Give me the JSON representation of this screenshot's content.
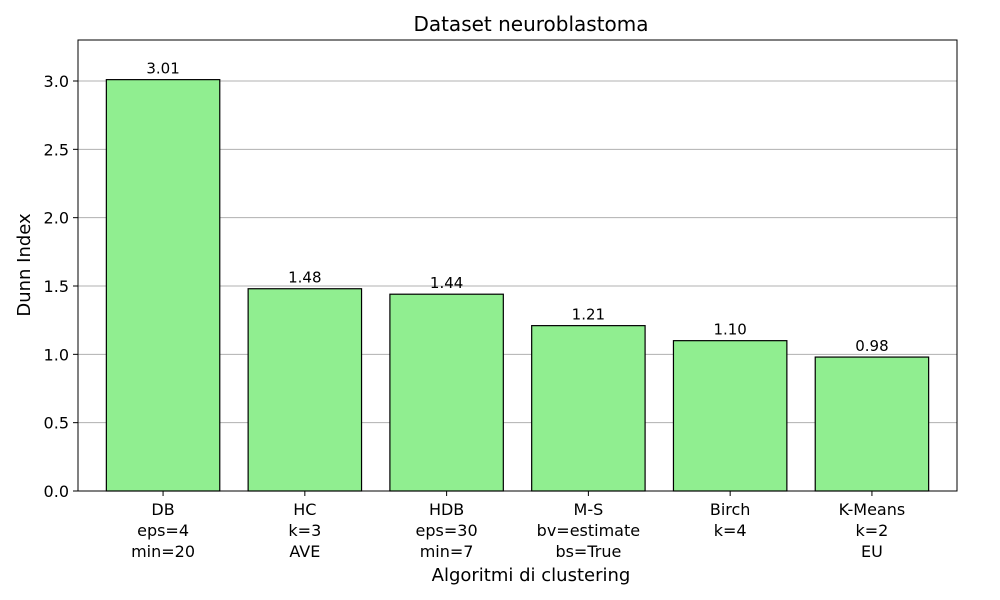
{
  "chart_data": {
    "type": "bar",
    "title": "Dataset neuroblastoma",
    "xlabel": "Algoritmi di clustering",
    "ylabel": "Dunn Index",
    "categories": [
      [
        "DB",
        "eps=4",
        "min=20"
      ],
      [
        "HC",
        "k=3",
        "AVE"
      ],
      [
        "HDB",
        "eps=30",
        "min=7"
      ],
      [
        "M-S",
        "bv=estimate",
        "bs=True"
      ],
      [
        "Birch",
        "k=4"
      ],
      [
        "K-Means",
        "k=2",
        "EU"
      ]
    ],
    "values": [
      3.01,
      1.48,
      1.44,
      1.21,
      1.1,
      0.98
    ],
    "value_labels": [
      "3.01",
      "1.48",
      "1.44",
      "1.21",
      "1.10",
      "0.98"
    ],
    "ylim": [
      0,
      3.3
    ],
    "yticks": [
      "0.0",
      "0.5",
      "1.0",
      "1.5",
      "2.0",
      "2.5",
      "3.0"
    ],
    "grid": "y",
    "colors": {
      "bar_fill": "#90ee90",
      "bar_edge": "#000000",
      "grid": "#b0b0b0"
    }
  }
}
